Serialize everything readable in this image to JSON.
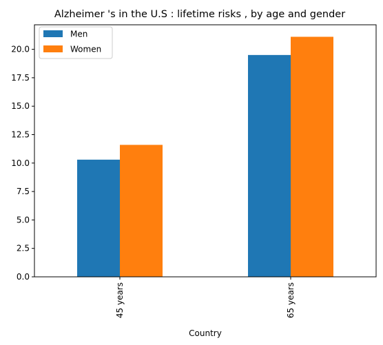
{
  "chart_data": {
    "type": "bar",
    "title": "Alzheimer 's in the U.S : lifetime risks , by age and gender",
    "xlabel": "Country",
    "ylabel": "",
    "categories": [
      "45 years",
      "65 years"
    ],
    "series": [
      {
        "name": "Men",
        "color": "#1f77b4",
        "values": [
          10.3,
          19.5
        ]
      },
      {
        "name": "Women",
        "color": "#ff7f0e",
        "values": [
          11.6,
          21.1
        ]
      }
    ],
    "ylim": [
      0,
      22.155
    ],
    "yticks": [
      0.0,
      2.5,
      5.0,
      7.5,
      10.0,
      12.5,
      15.0,
      17.5,
      20.0
    ],
    "ytick_labels": [
      "0.0",
      "2.5",
      "5.0",
      "7.5",
      "10.0",
      "12.5",
      "15.0",
      "17.5",
      "20.0"
    ],
    "grid": false,
    "legend_position": "top-left"
  }
}
